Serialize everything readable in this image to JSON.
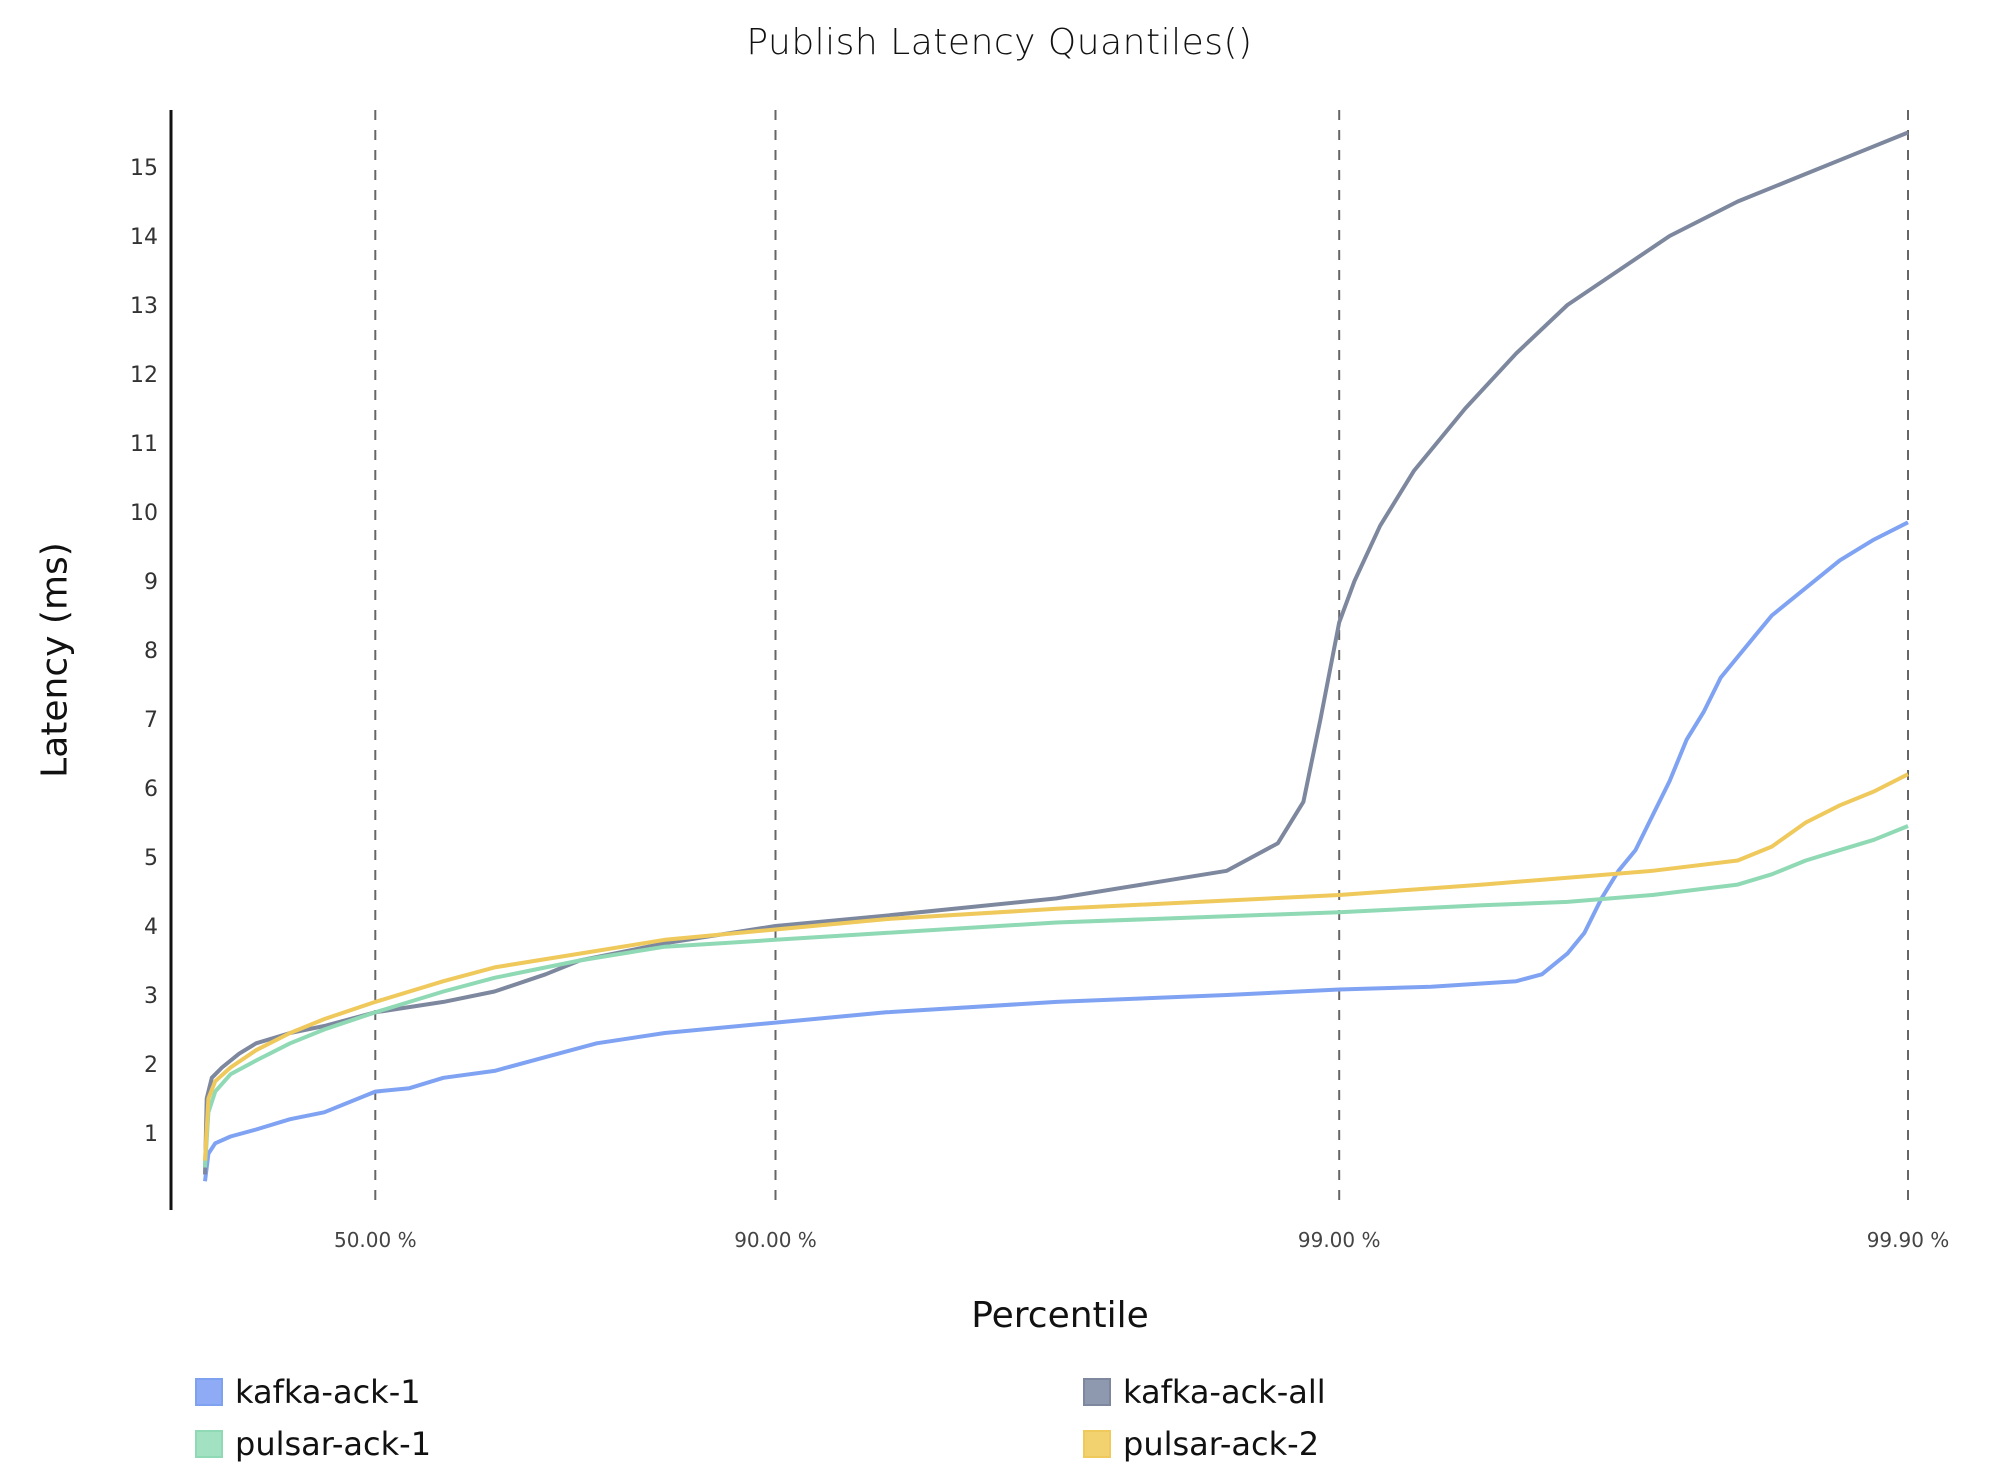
{
  "chart_data": {
    "type": "line",
    "title": "Publish Latency Quantiles()",
    "xlabel": "Percentile",
    "ylabel": "Latency (ms)",
    "x_scale": "percentile (log-like)",
    "x_ticks": [
      "50.00 %",
      "90.00 %",
      "99.00 %",
      "99.90 %"
    ],
    "x_tick_positions": [
      10.0,
      33.5,
      66.6,
      100.0
    ],
    "y_ticks": [
      1,
      2,
      3,
      4,
      5,
      6,
      7,
      8,
      9,
      10,
      11,
      12,
      13,
      14,
      15
    ],
    "ylim": [
      0,
      15.8
    ],
    "grid": "vertical dashed lines at x ticks",
    "legend_position": "bottom",
    "series": [
      {
        "name": "kafka-ack-1",
        "color": "#7fa3f2",
        "points": [
          [
            0,
            0.3
          ],
          [
            0.2,
            0.7
          ],
          [
            0.6,
            0.85
          ],
          [
            1.5,
            0.95
          ],
          [
            3,
            1.05
          ],
          [
            5,
            1.2
          ],
          [
            7,
            1.3
          ],
          [
            10,
            1.6
          ],
          [
            12,
            1.65
          ],
          [
            14,
            1.8
          ],
          [
            17,
            1.9
          ],
          [
            20,
            2.1
          ],
          [
            23,
            2.3
          ],
          [
            27,
            2.45
          ],
          [
            33.5,
            2.6
          ],
          [
            40,
            2.75
          ],
          [
            50,
            2.9
          ],
          [
            60,
            3.0
          ],
          [
            66.6,
            3.08
          ],
          [
            72,
            3.12
          ],
          [
            77,
            3.2
          ],
          [
            78.5,
            3.3
          ],
          [
            80,
            3.6
          ],
          [
            81,
            3.9
          ],
          [
            82,
            4.4
          ],
          [
            83,
            4.8
          ],
          [
            84,
            5.1
          ],
          [
            85,
            5.6
          ],
          [
            86,
            6.1
          ],
          [
            87,
            6.7
          ],
          [
            88,
            7.1
          ],
          [
            89,
            7.6
          ],
          [
            90,
            7.9
          ],
          [
            91,
            8.2
          ],
          [
            92,
            8.5
          ],
          [
            94,
            8.9
          ],
          [
            96,
            9.3
          ],
          [
            98,
            9.6
          ],
          [
            100,
            9.85
          ]
        ]
      },
      {
        "name": "kafka-ack-all",
        "color": "#7d889f",
        "points": [
          [
            0,
            0.4
          ],
          [
            0.1,
            1.5
          ],
          [
            0.4,
            1.8
          ],
          [
            1,
            1.95
          ],
          [
            2,
            2.15
          ],
          [
            3,
            2.3
          ],
          [
            5,
            2.45
          ],
          [
            7,
            2.55
          ],
          [
            10,
            2.75
          ],
          [
            14,
            2.9
          ],
          [
            17,
            3.05
          ],
          [
            20,
            3.3
          ],
          [
            22,
            3.5
          ],
          [
            27,
            3.75
          ],
          [
            33.5,
            4.0
          ],
          [
            40,
            4.15
          ],
          [
            50,
            4.4
          ],
          [
            55,
            4.6
          ],
          [
            60,
            4.8
          ],
          [
            63,
            5.2
          ],
          [
            64.5,
            5.8
          ],
          [
            65.5,
            7.0
          ],
          [
            66.6,
            8.4
          ],
          [
            67.5,
            9.0
          ],
          [
            69,
            9.8
          ],
          [
            71,
            10.6
          ],
          [
            74,
            11.5
          ],
          [
            77,
            12.3
          ],
          [
            80,
            13.0
          ],
          [
            83,
            13.5
          ],
          [
            86,
            14.0
          ],
          [
            90,
            14.5
          ],
          [
            94,
            14.9
          ],
          [
            97,
            15.2
          ],
          [
            100,
            15.5
          ]
        ]
      },
      {
        "name": "pulsar-ack-1",
        "color": "#8fd9b4",
        "points": [
          [
            0,
            0.5
          ],
          [
            0.2,
            1.3
          ],
          [
            0.6,
            1.6
          ],
          [
            1.5,
            1.85
          ],
          [
            3,
            2.05
          ],
          [
            5,
            2.3
          ],
          [
            7,
            2.5
          ],
          [
            10,
            2.75
          ],
          [
            14,
            3.05
          ],
          [
            17,
            3.25
          ],
          [
            22,
            3.5
          ],
          [
            27,
            3.7
          ],
          [
            33.5,
            3.8
          ],
          [
            40,
            3.9
          ],
          [
            50,
            4.05
          ],
          [
            66.6,
            4.2
          ],
          [
            75,
            4.3
          ],
          [
            80,
            4.35
          ],
          [
            85,
            4.45
          ],
          [
            90,
            4.6
          ],
          [
            92,
            4.75
          ],
          [
            94,
            4.95
          ],
          [
            96,
            5.1
          ],
          [
            98,
            5.25
          ],
          [
            100,
            5.45
          ]
        ]
      },
      {
        "name": "pulsar-ack-2",
        "color": "#efc95c",
        "points": [
          [
            0,
            0.6
          ],
          [
            0.2,
            1.5
          ],
          [
            0.6,
            1.75
          ],
          [
            1.5,
            1.95
          ],
          [
            3,
            2.2
          ],
          [
            5,
            2.45
          ],
          [
            7,
            2.65
          ],
          [
            10,
            2.9
          ],
          [
            14,
            3.2
          ],
          [
            17,
            3.4
          ],
          [
            22,
            3.6
          ],
          [
            27,
            3.8
          ],
          [
            33.5,
            3.95
          ],
          [
            40,
            4.1
          ],
          [
            50,
            4.25
          ],
          [
            66.6,
            4.45
          ],
          [
            75,
            4.6
          ],
          [
            80,
            4.7
          ],
          [
            85,
            4.8
          ],
          [
            90,
            4.95
          ],
          [
            92,
            5.15
          ],
          [
            94,
            5.5
          ],
          [
            96,
            5.75
          ],
          [
            98,
            5.95
          ],
          [
            100,
            6.2
          ]
        ]
      }
    ]
  },
  "legend": {
    "items": [
      {
        "label": "kafka-ack-1",
        "fill": "#8fabf5",
        "border": "#7ea1f0"
      },
      {
        "label": "kafka-ack-all",
        "fill": "#8e99b0",
        "border": "#7d889f"
      },
      {
        "label": "pulsar-ack-1",
        "fill": "#a2e2c3",
        "border": "#8fd9b4"
      },
      {
        "label": "pulsar-ack-2",
        "fill": "#f2d26f",
        "border": "#efc95c"
      }
    ]
  }
}
